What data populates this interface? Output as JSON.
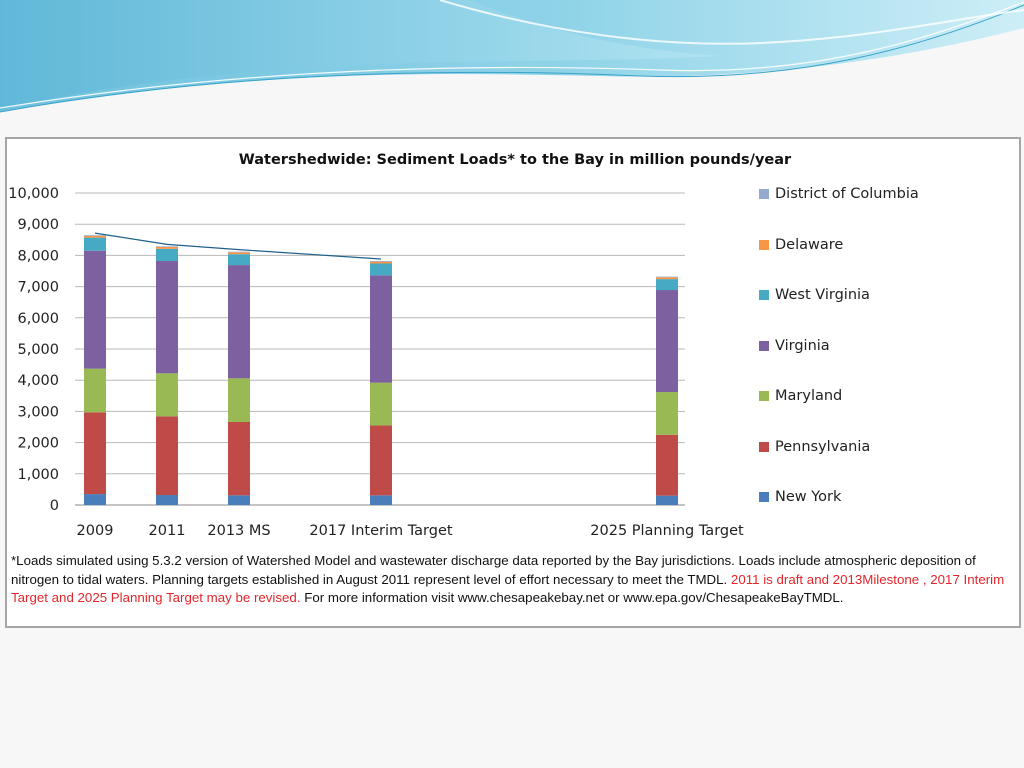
{
  "chart_data": {
    "type": "bar",
    "stacked": true,
    "title": "Watershedwide: Sediment Loads* to the Bay in million pounds/year",
    "xlabel": "",
    "ylabel": "",
    "ylim": [
      0,
      10000
    ],
    "y_ticks": [
      "0",
      "1,000",
      "2,000",
      "3,000",
      "4,000",
      "5,000",
      "6,000",
      "7,000",
      "8,000",
      "9,000",
      "10,000"
    ],
    "categories": [
      "2009",
      "2011",
      "2013 MS",
      "2017 Interim Target",
      "2025 Planning Target"
    ],
    "grid": true,
    "legend_position": "right",
    "series": [
      {
        "name": "New York",
        "color": "#4a7ebb",
        "values": [
          350,
          320,
          310,
          310,
          300
        ]
      },
      {
        "name": "Pennsylvania",
        "color": "#be4b48",
        "values": [
          2620,
          2520,
          2350,
          2240,
          1950
        ]
      },
      {
        "name": "Maryland",
        "color": "#98b954",
        "values": [
          1400,
          1380,
          1400,
          1370,
          1370
        ]
      },
      {
        "name": "Virginia",
        "color": "#7d60a0",
        "values": [
          3780,
          3600,
          3630,
          3440,
          3270
        ]
      },
      {
        "name": "West Virginia",
        "color": "#46aac5",
        "values": [
          420,
          390,
          350,
          380,
          350
        ]
      },
      {
        "name": "Delaware",
        "color": "#f79646",
        "values": [
          60,
          60,
          60,
          60,
          60
        ]
      },
      {
        "name": "District of Columbia",
        "color": "#93a9cf",
        "values": [
          20,
          20,
          20,
          20,
          20
        ]
      }
    ],
    "trend_line_color": "#1f5f8b"
  },
  "footnote": {
    "part1": "*Loads simulated using 5.3.2 version of Watershed Model and wastewater discharge data reported by the Bay jurisdictions.  Loads include atmospheric deposition of nitrogen to tidal waters. Planning targets established in August 2011 represent level of effort necessary to meet the TMDL. ",
    "part2_red": " 2011 is draft and 2013Milestone , 2017 Interim Target and 2025 Planning Target may be revised.",
    "part3": " For more information visit www.chesapeakebay.net or www.epa.gov/ChesapeakeBayTMDL."
  }
}
